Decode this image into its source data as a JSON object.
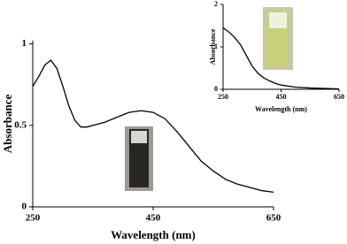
{
  "chart_data": [
    {
      "type": "line",
      "xlabel": "Wavelength (nm)",
      "ylabel": "Absorbance",
      "x": [
        250,
        260,
        270,
        280,
        290,
        300,
        310,
        320,
        330,
        340,
        350,
        370,
        390,
        410,
        430,
        450,
        470,
        490,
        510,
        530,
        550,
        570,
        590,
        610,
        630,
        650
      ],
      "series": [
        {
          "color": "#000000",
          "values": [
            0.74,
            0.8,
            0.87,
            0.9,
            0.85,
            0.74,
            0.62,
            0.53,
            0.49,
            0.49,
            0.5,
            0.52,
            0.55,
            0.58,
            0.59,
            0.58,
            0.54,
            0.46,
            0.37,
            0.28,
            0.22,
            0.17,
            0.14,
            0.12,
            0.1,
            0.09
          ]
        }
      ],
      "xlim": [
        250,
        650
      ],
      "xticks": [
        250,
        450,
        650
      ],
      "ylim": [
        0,
        1.02
      ],
      "yticks": [
        0,
        0.5,
        1
      ]
    },
    {
      "type": "line",
      "xlabel": "Wavelength (nm)",
      "ylabel": "Absorbance",
      "x": [
        250,
        270,
        290,
        310,
        330,
        350,
        370,
        390,
        410,
        430,
        450,
        500,
        550,
        600,
        650
      ],
      "series": [
        {
          "color": "#000000",
          "values": [
            1.45,
            1.35,
            1.22,
            1.05,
            0.8,
            0.55,
            0.38,
            0.27,
            0.2,
            0.14,
            0.1,
            0.05,
            0.03,
            0.02,
            0.01
          ]
        }
      ],
      "xlim": [
        250,
        650
      ],
      "xticks": [
        250,
        450,
        650
      ],
      "ylim": [
        0,
        2
      ],
      "yticks": [
        0,
        1,
        2
      ]
    }
  ]
}
